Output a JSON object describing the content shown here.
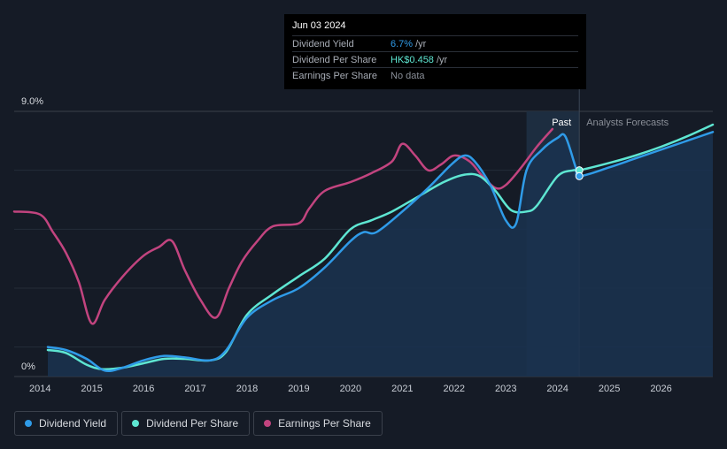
{
  "tooltip": {
    "date": "Jun 03 2024",
    "rows": [
      {
        "label": "Dividend Yield",
        "value": "6.7%",
        "suffix": "/yr"
      },
      {
        "label": "Dividend Per Share",
        "value": "HK$0.458",
        "suffix": "/yr"
      },
      {
        "label": "Earnings Per Share",
        "value": "No data",
        "suffix": ""
      }
    ]
  },
  "legend": [
    {
      "label": "Dividend Yield",
      "color": "#2f9be8"
    },
    {
      "label": "Dividend Per Share",
      "color": "#5ee6d2"
    },
    {
      "label": "Earnings Per Share",
      "color": "#c2447f"
    }
  ],
  "chart_data": {
    "type": "line",
    "y_max_label": "9.0%",
    "y_min_label": "0%",
    "ylim": [
      0,
      9
    ],
    "xlim": [
      2013.5,
      2027.0
    ],
    "x_ticks": [
      "2014",
      "2015",
      "2016",
      "2017",
      "2018",
      "2019",
      "2020",
      "2021",
      "2022",
      "2023",
      "2024",
      "2025",
      "2026"
    ],
    "past_label": "Past",
    "forecast_label": "Analysts Forecasts",
    "forecast_band": [
      2023.4,
      2024.42
    ],
    "series": [
      {
        "name": "Dividend Yield",
        "color": "#2f9be8",
        "x": [
          2014.15,
          2014.5,
          2014.9,
          2015.25,
          2015.6,
          2016.0,
          2016.4,
          2016.8,
          2017.3,
          2017.6,
          2018.0,
          2018.5,
          2019.0,
          2019.5,
          2020.0,
          2020.25,
          2020.5,
          2021.0,
          2021.5,
          2021.95,
          2022.2,
          2022.4,
          2022.7,
          2023.0,
          2023.2,
          2023.4,
          2023.7,
          2024.0,
          2024.15,
          2024.35,
          2024.42,
          2025.0,
          2025.5,
          2026.0,
          2026.5,
          2027.0
        ],
        "y": [
          1.0,
          0.9,
          0.6,
          0.2,
          0.3,
          0.55,
          0.7,
          0.65,
          0.55,
          0.9,
          2.0,
          2.6,
          3.0,
          3.7,
          4.6,
          4.9,
          4.9,
          5.6,
          6.4,
          7.2,
          7.5,
          7.3,
          6.5,
          5.3,
          5.2,
          7.0,
          7.7,
          8.1,
          8.15,
          7.1,
          6.8,
          7.1,
          7.4,
          7.7,
          8.0,
          8.3
        ]
      },
      {
        "name": "Dividend Per Share",
        "color": "#5ee6d2",
        "x": [
          2014.15,
          2014.5,
          2014.9,
          2015.2,
          2015.6,
          2016.0,
          2016.4,
          2016.8,
          2017.3,
          2017.6,
          2018.0,
          2018.5,
          2019.0,
          2019.5,
          2020.0,
          2020.4,
          2020.8,
          2021.3,
          2021.8,
          2022.2,
          2022.5,
          2022.8,
          2023.1,
          2023.4,
          2023.6,
          2024.0,
          2024.3,
          2024.42,
          2025.0,
          2025.5,
          2026.0,
          2026.5,
          2027.0
        ],
        "y": [
          0.9,
          0.8,
          0.4,
          0.25,
          0.3,
          0.45,
          0.6,
          0.6,
          0.55,
          0.85,
          2.1,
          2.8,
          3.4,
          4.0,
          5.0,
          5.3,
          5.6,
          6.1,
          6.6,
          6.85,
          6.8,
          6.3,
          5.65,
          5.6,
          5.8,
          6.8,
          7.0,
          7.0,
          7.25,
          7.5,
          7.8,
          8.15,
          8.55
        ]
      },
      {
        "name": "Earnings Per Share",
        "color": "#c2447f",
        "x": [
          2013.5,
          2014.0,
          2014.25,
          2014.5,
          2014.75,
          2015.0,
          2015.25,
          2015.6,
          2016.0,
          2016.3,
          2016.55,
          2016.8,
          2017.1,
          2017.4,
          2017.65,
          2017.9,
          2018.2,
          2018.5,
          2019.0,
          2019.2,
          2019.5,
          2020.0,
          2020.4,
          2020.8,
          2021.0,
          2021.25,
          2021.5,
          2021.75,
          2022.0,
          2022.3,
          2022.55,
          2022.8,
          2023.0,
          2023.3,
          2023.6,
          2023.9
        ],
        "y": [
          5.6,
          5.5,
          4.9,
          4.2,
          3.2,
          1.8,
          2.6,
          3.4,
          4.1,
          4.4,
          4.6,
          3.6,
          2.6,
          2.0,
          3.0,
          3.9,
          4.6,
          5.1,
          5.2,
          5.7,
          6.3,
          6.6,
          6.9,
          7.3,
          7.9,
          7.5,
          7.0,
          7.2,
          7.5,
          7.3,
          6.8,
          6.4,
          6.5,
          7.1,
          7.8,
          8.4
        ]
      }
    ]
  }
}
